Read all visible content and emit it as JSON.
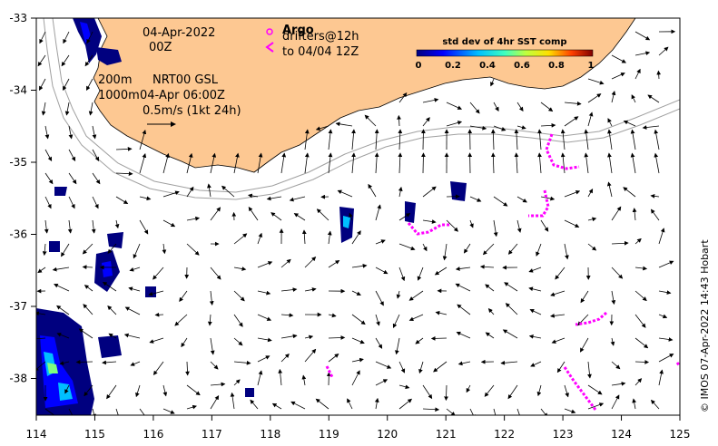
{
  "map": {
    "date_label": "04-Apr-2022",
    "time_label": "00Z",
    "depth_label_1": "200m",
    "depth_label_2": "1000m",
    "product_label": "NRT00 GSL",
    "product_time": "04-Apr 06:00Z",
    "scale_label": "0.5m/s (1kt 24h)",
    "argo_label": "Argo",
    "drifters_label_1": "drifters@12h",
    "drifters_label_2": "to 04/04 12Z",
    "colorbar_title": "std dev of 4hr SST comp",
    "colorbar_ticks": [
      "0",
      "0.2",
      "0.4",
      "0.6",
      "0.8",
      "1"
    ],
    "credit": "© IMOS 07-Apr-2022 14:43 Hobart",
    "x_ticks": [
      "114",
      "115",
      "116",
      "117",
      "118",
      "119",
      "120",
      "121",
      "122",
      "123",
      "124",
      "125"
    ],
    "y_ticks": [
      "-33",
      "-34",
      "-35",
      "-36",
      "-37",
      "-38"
    ],
    "colors": {
      "land": "#fdc892",
      "coast": "#000000",
      "bathymetry": "#a0a0a0",
      "drifter": "#ff00ff",
      "sst_dark": "#00007f",
      "sst_mid": "#00bfff",
      "sst_hi": "#7fff7f"
    }
  }
}
